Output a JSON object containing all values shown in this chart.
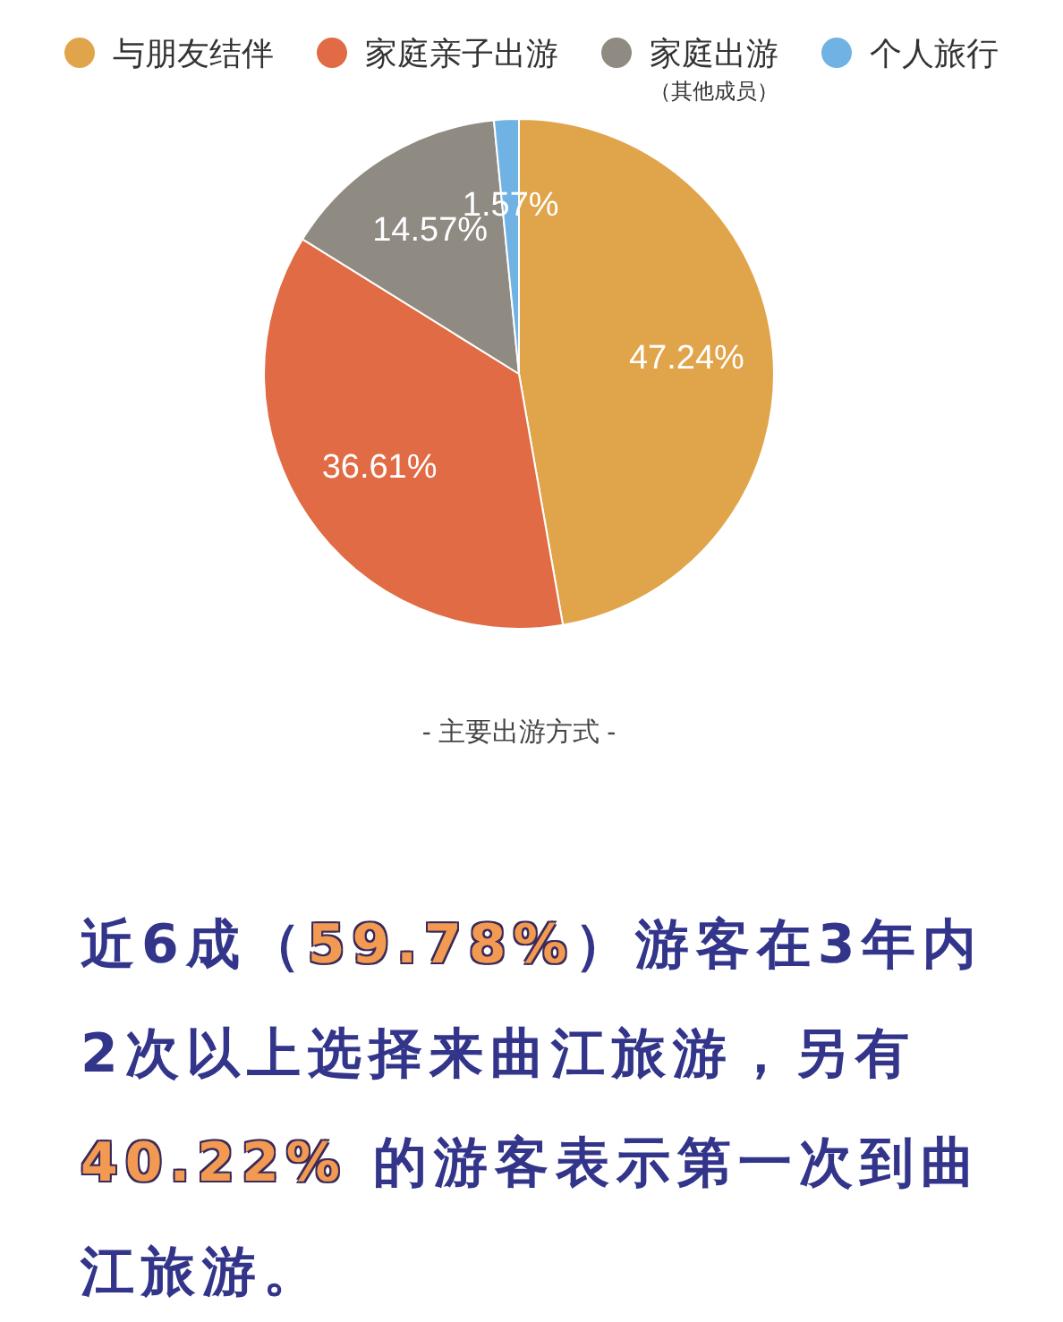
{
  "chart_data": {
    "type": "pie",
    "categories": [
      "与朋友结伴",
      "家庭亲子出游",
      "家庭出游（其他成员）",
      "个人旅行"
    ],
    "values": [
      47.24,
      36.61,
      14.57,
      1.57
    ],
    "colors": [
      "#e0a44b",
      "#e06b44",
      "#8f8a82",
      "#6fb2e3"
    ],
    "value_labels": [
      "47.24%",
      "36.61%",
      "14.57%",
      "1.57%"
    ],
    "legend": "top",
    "annotations": [
      "- 主要出游方式 -",
      "近6成（59.78%）游客在3年内2次以上选择来曲江旅游，另有40.22% 的游客表示第一次到曲江旅游。"
    ]
  }
}
